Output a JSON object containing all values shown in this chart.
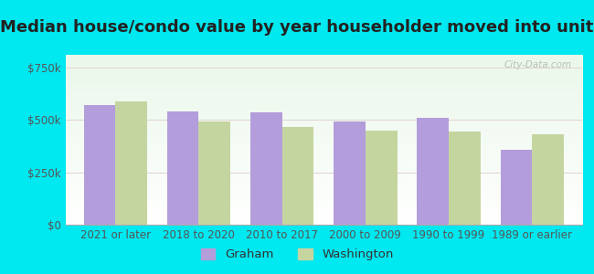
{
  "title": "Median house/condo value by year householder moved into unit",
  "categories": [
    "2021 or later",
    "2018 to 2020",
    "2010 to 2017",
    "2000 to 2009",
    "1990 to 1999",
    "1989 or earlier"
  ],
  "graham_values": [
    570000,
    540000,
    535000,
    490000,
    510000,
    355000
  ],
  "washington_values": [
    590000,
    490000,
    465000,
    450000,
    445000,
    430000
  ],
  "graham_color": "#b39ddb",
  "washington_color": "#c5d5a0",
  "background_outer": "#00e8f0",
  "yticks": [
    0,
    250000,
    500000,
    750000
  ],
  "ylim": [
    0,
    810000
  ],
  "bar_width": 0.38,
  "legend_labels": [
    "Graham",
    "Washington"
  ],
  "title_fontsize": 13,
  "tick_fontsize": 8.5,
  "legend_fontsize": 9.5
}
